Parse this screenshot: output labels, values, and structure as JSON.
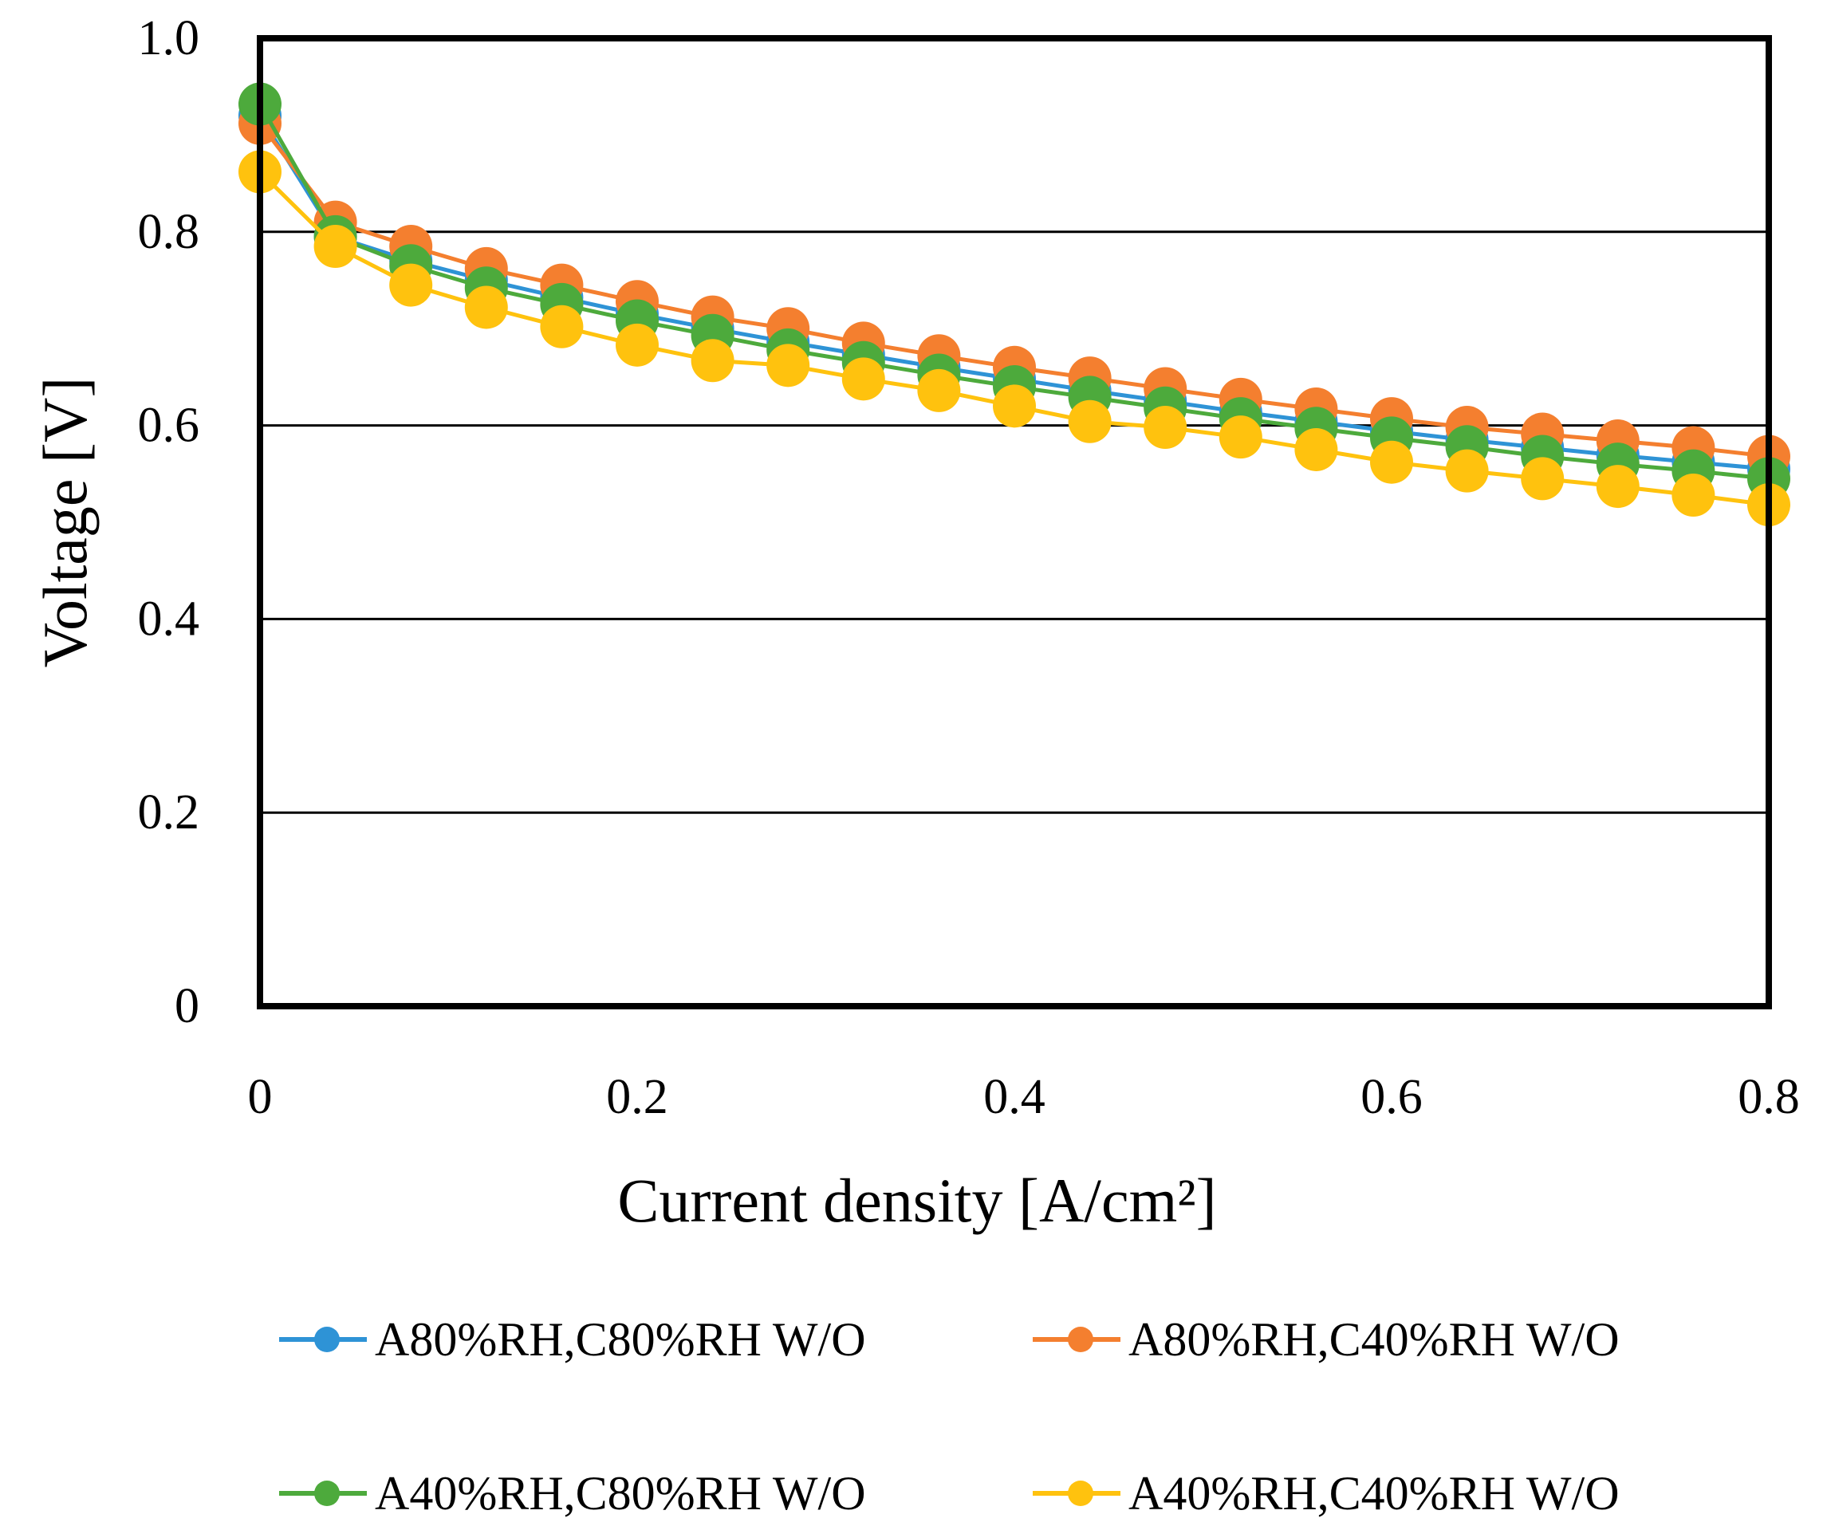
{
  "chart_data": {
    "type": "line",
    "title": "",
    "xlabel": "Current density [A/cm²]",
    "ylabel": "Voltage [V]",
    "xlim": [
      0,
      0.8
    ],
    "ylim": [
      0,
      1.0
    ],
    "x_ticks": [
      "0",
      "0.2",
      "0.4",
      "0.6",
      "0.8"
    ],
    "y_ticks": [
      "0",
      "0.2",
      "0.4",
      "0.6",
      "0.8",
      "1.0"
    ],
    "grid": "horizontal",
    "legend_position": "bottom",
    "x": [
      0,
      0.04,
      0.08,
      0.12,
      0.16,
      0.2,
      0.24,
      0.28,
      0.32,
      0.36,
      0.4,
      0.44,
      0.48,
      0.52,
      0.56,
      0.6,
      0.64,
      0.68,
      0.72,
      0.76,
      0.8
    ],
    "series": [
      {
        "name": "A80%RH,C80%RH W/O",
        "color": "#2E93D6",
        "values": [
          0.92,
          0.795,
          0.77,
          0.75,
          0.732,
          0.715,
          0.7,
          0.686,
          0.673,
          0.66,
          0.648,
          0.636,
          0.625,
          0.614,
          0.604,
          0.594,
          0.585,
          0.577,
          0.569,
          0.562,
          0.555
        ]
      },
      {
        "name": "A80%RH,C40%RH W/O",
        "color": "#F47F2F",
        "values": [
          0.912,
          0.81,
          0.785,
          0.762,
          0.745,
          0.728,
          0.712,
          0.7,
          0.685,
          0.672,
          0.66,
          0.649,
          0.638,
          0.627,
          0.617,
          0.607,
          0.598,
          0.591,
          0.584,
          0.577,
          0.568
        ]
      },
      {
        "name": "A40%RH,C80%RH W/O",
        "color": "#4DAA3C",
        "values": [
          0.932,
          0.795,
          0.765,
          0.742,
          0.725,
          0.708,
          0.693,
          0.678,
          0.665,
          0.652,
          0.64,
          0.629,
          0.618,
          0.607,
          0.597,
          0.587,
          0.578,
          0.568,
          0.56,
          0.553,
          0.545
        ]
      },
      {
        "name": "A40%RH,C40%RH W/O",
        "color": "#FFC20E",
        "values": [
          0.862,
          0.785,
          0.745,
          0.722,
          0.702,
          0.683,
          0.667,
          0.662,
          0.648,
          0.636,
          0.62,
          0.604,
          0.598,
          0.588,
          0.575,
          0.562,
          0.553,
          0.545,
          0.537,
          0.528,
          0.518
        ]
      }
    ]
  }
}
